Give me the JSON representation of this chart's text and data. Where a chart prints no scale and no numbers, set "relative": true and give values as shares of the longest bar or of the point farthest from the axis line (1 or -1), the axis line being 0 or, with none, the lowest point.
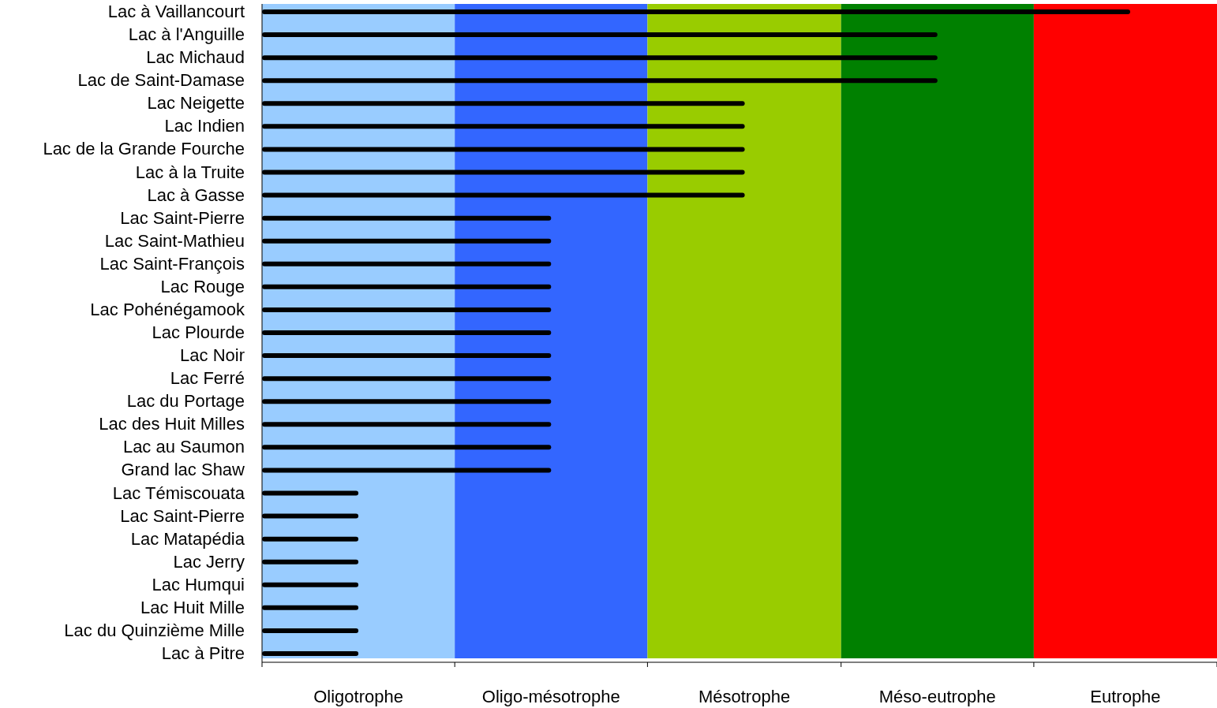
{
  "chart_data": {
    "type": "bar",
    "orientation": "horizontal",
    "categories": [
      "Lac à Vaillancourt",
      "Lac à l'Anguille",
      "Lac Michaud",
      "Lac de Saint-Damase",
      "Lac Neigette",
      "Lac Indien",
      "Lac de la Grande Fourche",
      "Lac à la Truite",
      "Lac à Gasse",
      "Lac Saint-Pierre",
      "Lac Saint-Mathieu",
      "Lac Saint-François",
      "Lac Rouge",
      "Lac Pohénégamook",
      "Lac Plourde",
      "Lac Noir",
      "Lac Ferré",
      "Lac du Portage",
      "Lac des Huit Milles",
      "Lac au Saumon",
      "Grand lac Shaw",
      "Lac Témiscouata",
      "Lac Saint-Pierre",
      "Lac Matapédia",
      "Lac Jerry",
      "Lac Humqui",
      "Lac Huit Mille",
      "Lac du Quinzième Mille",
      "Lac à Pitre"
    ],
    "relative": true,
    "values": [
      1,
      0.778,
      0.778,
      0.778,
      0.556,
      0.556,
      0.556,
      0.556,
      0.556,
      0.333,
      0.333,
      0.333,
      0.333,
      0.333,
      0.333,
      0.333,
      0.333,
      0.333,
      0.333,
      0.333,
      0.333,
      0.111,
      0.111,
      0.111,
      0.111,
      0.111,
      0.111,
      0.111,
      0.111
    ],
    "color": "#000000",
    "bands": [
      {
        "axis": "x",
        "from": 0,
        "to": 0.222,
        "color": "#99ccff",
        "label": "Oligotrophe"
      },
      {
        "axis": "x",
        "from": 0.222,
        "to": 0.444,
        "color": "#3366ff",
        "label": "Oligo-mésotrophe"
      },
      {
        "axis": "x",
        "from": 0.444,
        "to": 0.667,
        "color": "#99cc00",
        "label": "Mésotrophe"
      },
      {
        "axis": "x",
        "from": 0.667,
        "to": 0.889,
        "color": "#008000",
        "label": "Méso-eutrophe"
      },
      {
        "axis": "x",
        "from": 0.889,
        "to": 1.1,
        "color": "#ff0000",
        "label": "Eutrophe"
      }
    ]
  }
}
